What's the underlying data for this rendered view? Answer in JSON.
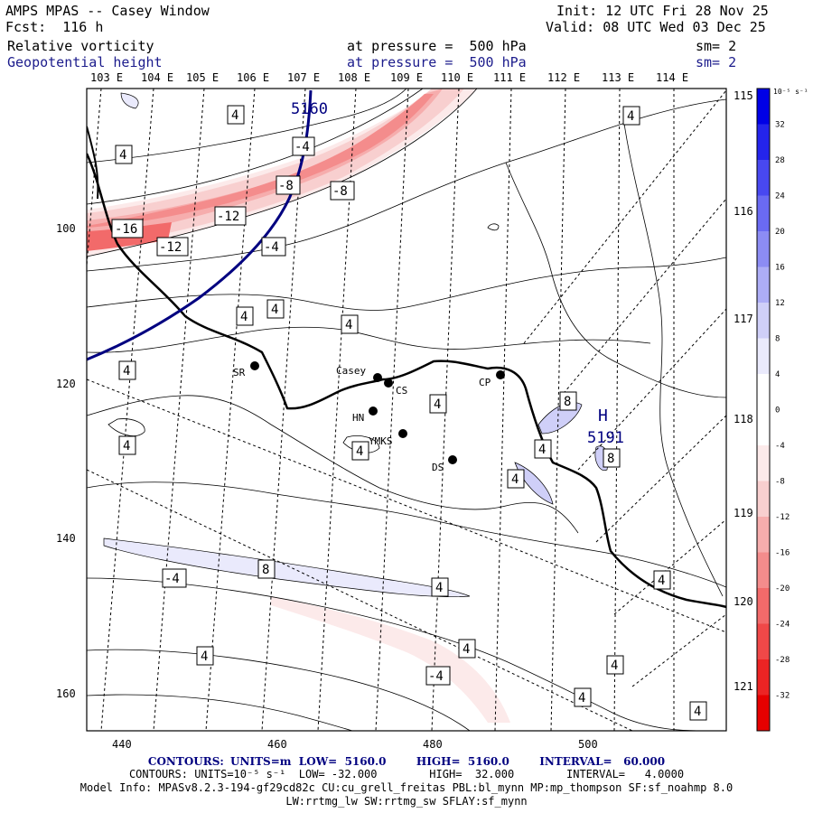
{
  "header": {
    "title": "AMPS MPAS -- Casey Window",
    "forecast": "Fcst:  116 h",
    "init": "Init: 12 UTC Fri 28 Nov 25",
    "valid": "Valid: 08 UTC Wed 03 Dec 25",
    "field1_name": "Relative vorticity",
    "field1_level": "at pressure =  500 hPa",
    "field1_smooth": "sm= 2",
    "field2_name": "Geopotential height",
    "field2_level": "at pressure =  500 hPa",
    "field2_smooth": "sm= 2"
  },
  "axes": {
    "lon_top": [
      "103 E",
      "104 E",
      "105 E",
      "106 E",
      "107 E",
      "108 E",
      "109 E",
      "110 E",
      "111 E",
      "112 E",
      "113 E",
      "114 E"
    ],
    "lat_right": [
      "115 E",
      "116 E",
      "117 E",
      "118 E",
      "119 E",
      "120 E",
      "121 E"
    ],
    "x_ticks": [
      "440",
      "460",
      "480",
      "500"
    ],
    "y_ticks": [
      "100",
      "120",
      "140",
      "160"
    ]
  },
  "colorbar": {
    "unit": "10⁻⁵ s⁻¹",
    "ticks": [
      "32",
      "28",
      "24",
      "20",
      "16",
      "12",
      "8",
      "4",
      "0",
      "-4",
      "-8",
      "-12",
      "-16",
      "-20",
      "-24",
      "-28",
      "-32"
    ],
    "colors": [
      "#0000e6",
      "#2424ec",
      "#4848f0",
      "#6a6af2",
      "#8c8cf4",
      "#adadf6",
      "#cfcff8",
      "#eaeafc",
      "#ffffff",
      "#ffffff",
      "#fceaea",
      "#f8cfcf",
      "#f6adad",
      "#f48c8c",
      "#f26a6a",
      "#f04848",
      "#ec2424",
      "#e60000"
    ]
  },
  "stations": [
    {
      "name": "SR"
    },
    {
      "name": "Casey"
    },
    {
      "name": "CS"
    },
    {
      "name": "HN"
    },
    {
      "name": "YMKS"
    },
    {
      "name": "DS"
    },
    {
      "name": "CP"
    }
  ],
  "labels": {
    "height_contour": "5160",
    "high_marker": "H",
    "high_value": "5191",
    "vort_labels": [
      "4",
      "-4",
      "-8",
      "-12",
      "-16",
      "8"
    ]
  },
  "footer": {
    "line1_prefix": "CONTOURS:",
    "line1": "UNITS=m  LOW=  5160.0        HIGH=  5160.0        INTERVAL=   60.000",
    "line2_prefix": "CONTOURS:",
    "line2": "UNITS=10⁻⁵ s⁻¹  LOW= -32.000        HIGH=  32.000        INTERVAL=   4.0000",
    "line3": "Model Info: MPASv8.2.3-194-gf29cd82c CU:cu_grell_freitas PBL:bl_mynn MP:mp_thompson SF:sf_noahmp 8.0",
    "line4": "LW:rrtmg_lw SW:rrtmg_sw SFLAY:sf_mynn"
  }
}
